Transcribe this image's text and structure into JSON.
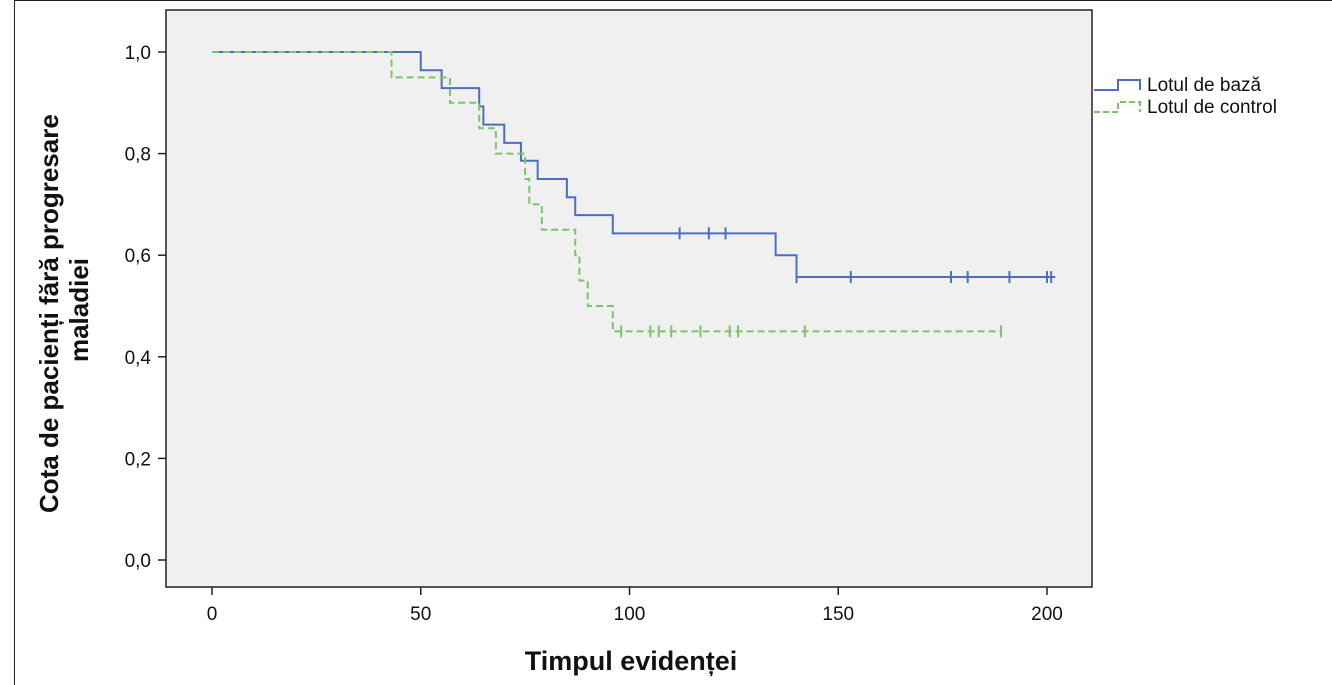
{
  "chart_data": {
    "type": "line",
    "subtype": "kaplan-meier-step",
    "title": "",
    "xlabel": "Timpul evidenței",
    "ylabel": "Cota de pacienți fără progresare maladiei",
    "xlim": [
      -10,
      210
    ],
    "ylim": [
      -0.05,
      1.07
    ],
    "xticks": [
      0,
      50,
      100,
      150,
      200
    ],
    "xtick_labels": [
      "0",
      "50",
      "100",
      "150",
      "200"
    ],
    "yticks": [
      0.0,
      0.2,
      0.4,
      0.6,
      0.8,
      1.0
    ],
    "ytick_labels": [
      "0,0",
      "0,2",
      "0,4",
      "0,6",
      "0,8",
      "1,0"
    ],
    "grid": false,
    "legend_position": "right",
    "plot_background": "#f0f0f0",
    "series": [
      {
        "name": "Lotul de bază",
        "color": "#4a6fbf",
        "dash": "solid",
        "steps": [
          [
            0,
            1.0
          ],
          [
            50,
            0.964
          ],
          [
            55,
            0.929
          ],
          [
            64,
            0.893
          ],
          [
            65,
            0.857
          ],
          [
            70,
            0.821
          ],
          [
            74,
            0.786
          ],
          [
            78,
            0.75
          ],
          [
            85,
            0.714
          ],
          [
            87,
            0.679
          ],
          [
            96,
            0.643
          ],
          [
            135,
            0.6
          ],
          [
            140,
            0.557
          ]
        ],
        "end_x": 202,
        "censored": [
          [
            112,
            0.643
          ],
          [
            119,
            0.643
          ],
          [
            123,
            0.643
          ],
          [
            140,
            0.557
          ],
          [
            153,
            0.557
          ],
          [
            177,
            0.557
          ],
          [
            181,
            0.557
          ],
          [
            191,
            0.557
          ],
          [
            200,
            0.557
          ],
          [
            201,
            0.557
          ]
        ]
      },
      {
        "name": "Lotul de control",
        "color": "#7cc46a",
        "dash": "dashed",
        "steps": [
          [
            0,
            1.0
          ],
          [
            43,
            0.95
          ],
          [
            57,
            0.9
          ],
          [
            64,
            0.85
          ],
          [
            68,
            0.8
          ],
          [
            75,
            0.75
          ],
          [
            76,
            0.7
          ],
          [
            79,
            0.65
          ],
          [
            87,
            0.6
          ],
          [
            88,
            0.55
          ],
          [
            90,
            0.5
          ],
          [
            96,
            0.45
          ]
        ],
        "end_x": 189,
        "censored": [
          [
            98,
            0.45
          ],
          [
            105,
            0.45
          ],
          [
            107,
            0.45
          ],
          [
            110,
            0.45
          ],
          [
            117,
            0.45
          ],
          [
            124,
            0.45
          ],
          [
            126,
            0.45
          ],
          [
            142,
            0.45
          ],
          [
            189,
            0.45
          ]
        ]
      }
    ]
  }
}
